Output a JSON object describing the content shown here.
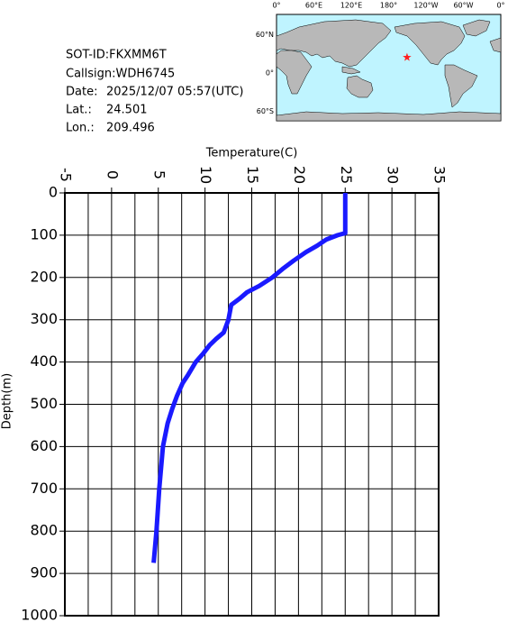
{
  "info": {
    "sot_id": "SOT-ID:FKXMM6T",
    "callsign": "Callsign:WDH6745",
    "date_label": "Date:",
    "date": "2025/12/07 05:57(UTC)",
    "lat_label": "Lat.:",
    "lat": 24.501,
    "lon_label": "Lon.:",
    "lon": 209.496
  },
  "map": {
    "lon_labels": [
      "0°",
      "60°E",
      "120°E",
      "180°",
      "120°W",
      "60°W",
      "0°"
    ],
    "lat_labels": [
      "60°N",
      "0°",
      "60°S"
    ]
  },
  "chart_data": {
    "type": "line",
    "x_label": "Temperature(C)",
    "y_label": "Depth(m)",
    "xlim": [
      -5,
      35
    ],
    "xticks": [
      -5,
      0,
      5,
      10,
      15,
      20,
      25,
      30,
      35
    ],
    "xminorticks": [
      -2.5,
      2.5,
      7.5,
      12.5,
      17.5,
      22.5,
      27.5,
      32.5
    ],
    "ylim": [
      0,
      1000
    ],
    "y_inverted": true,
    "yticks": [
      0,
      100,
      200,
      300,
      400,
      500,
      600,
      700,
      800,
      900,
      1000
    ],
    "grid": true,
    "series": [
      {
        "name": "Temperature",
        "color": "#1a1aff",
        "x": [
          25,
          25,
          24.2,
          23,
          22,
          20.8,
          19.5,
          18.3,
          17.2,
          15.8,
          14.5,
          13.7,
          12.8,
          12.5,
          12,
          11.2,
          10.5,
          9.8,
          9,
          8.2,
          7.6,
          7,
          6.5,
          6,
          5.5,
          5.1,
          4.8,
          4.5
        ],
        "y": [
          0,
          95,
          100,
          110,
          125,
          140,
          160,
          180,
          200,
          220,
          235,
          250,
          265,
          300,
          330,
          345,
          360,
          380,
          400,
          430,
          450,
          480,
          510,
          545,
          600,
          700,
          800,
          875
        ]
      }
    ]
  }
}
